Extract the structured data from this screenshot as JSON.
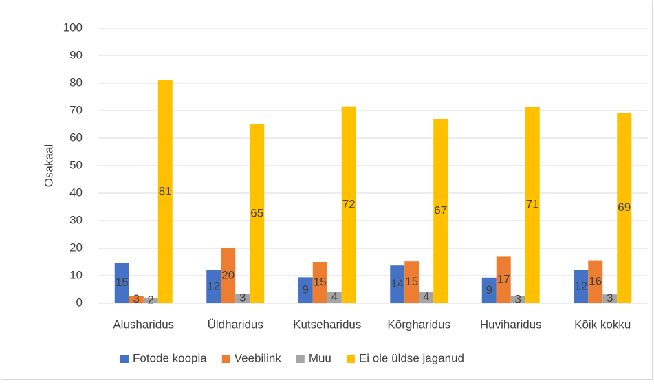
{
  "chart_data": {
    "type": "bar",
    "categories": [
      "Alusharidus",
      "Üldharidus",
      "Kutseharidus",
      "Kõrgharidus",
      "Huviharidus",
      "Kõik kokku"
    ],
    "y_label": "Osakaal",
    "series": [
      {
        "name": "Fotode koopia",
        "color": "#4472c4",
        "values": [
          14.7,
          12.0,
          9.4,
          13.7,
          9.3,
          12.0
        ],
        "value_labels": [
          "15",
          "12",
          "9",
          "14",
          "9",
          "12"
        ]
      },
      {
        "name": "Veebilink",
        "color": "#ed7d31",
        "values": [
          2.7,
          20.0,
          15.0,
          15.2,
          16.9,
          15.6
        ],
        "value_labels": [
          "3",
          "20",
          "15",
          "15",
          "17",
          "16"
        ]
      },
      {
        "name": "Muu",
        "color": "#a5a5a5",
        "values": [
          2.0,
          3.4,
          4.2,
          4.2,
          2.6,
          3.2
        ],
        "value_labels": [
          "2",
          "3",
          "4",
          "4",
          "3",
          "3"
        ]
      },
      {
        "name": "Ei ole üldse jaganud",
        "color": "#ffc000",
        "values": [
          81.0,
          65.0,
          71.6,
          67.0,
          71.4,
          69.2
        ],
        "value_labels": [
          "81",
          "65",
          "72",
          "67",
          "71",
          "69"
        ]
      }
    ],
    "ylim": [
      0,
      100
    ],
    "yticks": [
      0,
      10,
      20,
      30,
      40,
      50,
      60,
      70,
      80,
      90,
      100
    ],
    "grid": true,
    "legend": "bottom"
  }
}
